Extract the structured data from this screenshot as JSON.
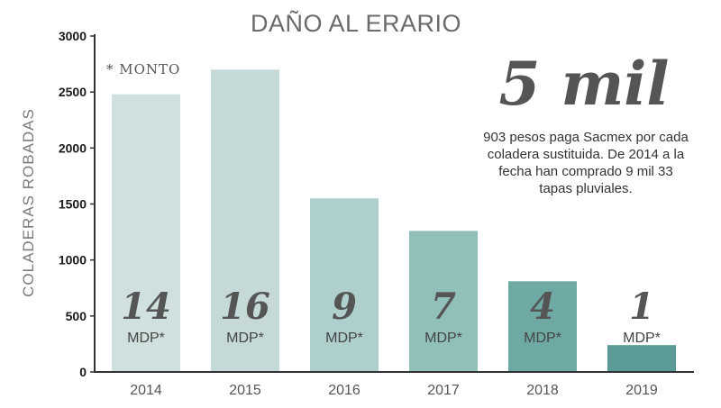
{
  "chart_data": {
    "type": "bar",
    "title": "DAÑO AL ERARIO",
    "xlabel": "",
    "ylabel": "COLADERAS ROBADAS",
    "ylim": [
      0,
      3000
    ],
    "yticks": [
      "0",
      "500",
      "1000",
      "1500",
      "2000",
      "2500",
      "3000"
    ],
    "categories": [
      "2014",
      "2015",
      "2016",
      "2017",
      "2018",
      "2019"
    ],
    "values": [
      2480,
      2700,
      1550,
      1260,
      810,
      240
    ],
    "bar_labels": [
      {
        "amount": "14",
        "unit": "MDP*"
      },
      {
        "amount": "16",
        "unit": "MDP*"
      },
      {
        "amount": "9",
        "unit": "MDP*"
      },
      {
        "amount": "7",
        "unit": "MDP*"
      },
      {
        "amount": "4",
        "unit": "MDP*"
      },
      {
        "amount": "1",
        "unit": "MDP*"
      }
    ],
    "colors": [
      "#cfe0df",
      "#c5dad8",
      "#aecfcc",
      "#91c0bb",
      "#6ea9a3",
      "#5a9c95"
    ],
    "note": "* MONTO",
    "highlight": {
      "big": "5 mil",
      "text_lines": [
        "903 pesos paga Sacmex por cada",
        "coladera sustituida. De 2014 a la",
        "fecha han comprado 9 mil 33",
        "tapas pluviales."
      ]
    },
    "grid": false
  }
}
